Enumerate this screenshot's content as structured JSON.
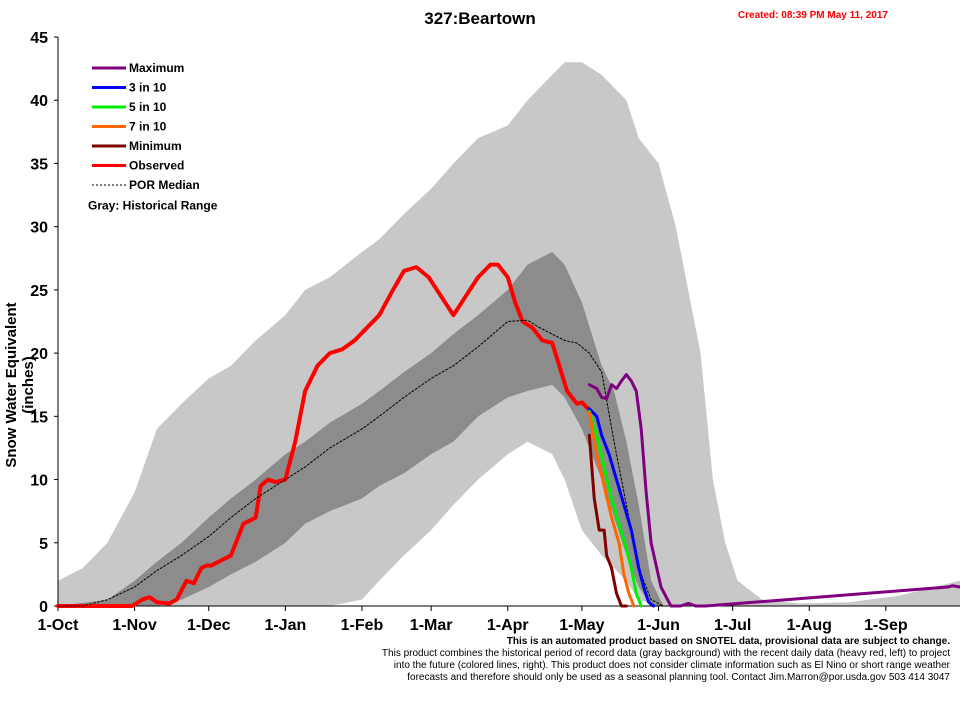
{
  "header": {
    "title": "327:Beartown",
    "created": "Created: 08:39 PM May 11, 2017"
  },
  "footer": {
    "lead": "This is an automated product based on SNOTEL data, provisional data are subject to change.",
    "lines": [
      "This product combines the historical period of record data (gray background) with the recent daily data (heavy red, left) to project",
      "into the future (colored lines, right). This product does not consider climate information such as El Nino or short range weather",
      "forecasts and therefore should only be used as a seasonal planning tool. Contact Jim.Marron@por.usda.gov 503 414 3047"
    ]
  },
  "chart_data": {
    "type": "line",
    "title": "327:Beartown",
    "ylabel": "Snow Water Equivalent (inches)",
    "xlabel": "",
    "ylim": [
      0,
      45
    ],
    "yticks": [
      0,
      5,
      10,
      15,
      20,
      25,
      30,
      35,
      40,
      45
    ],
    "x_unit": "day of water year (0 = 1-Oct)",
    "xlim": [
      0,
      365
    ],
    "xticks": [
      {
        "label": "1-Oct",
        "x": 0
      },
      {
        "label": "1-Nov",
        "x": 31
      },
      {
        "label": "1-Dec",
        "x": 61
      },
      {
        "label": "1-Jan",
        "x": 92
      },
      {
        "label": "1-Feb",
        "x": 123
      },
      {
        "label": "1-Mar",
        "x": 151
      },
      {
        "label": "1-Apr",
        "x": 182
      },
      {
        "label": "1-May",
        "x": 212
      },
      {
        "label": "1-Jun",
        "x": 243
      },
      {
        "label": "1-Jul",
        "x": 273
      },
      {
        "label": "1-Aug",
        "x": 304
      },
      {
        "label": "1-Sep",
        "x": 335
      }
    ],
    "grid": false,
    "legend_position": "top-left",
    "legend": [
      {
        "label": "Maximum",
        "color": "#800080",
        "style": "solid"
      },
      {
        "label": "3 in 10",
        "color": "#0000ff",
        "style": "solid"
      },
      {
        "label": "5 in 10",
        "color": "#00ee00",
        "style": "solid"
      },
      {
        "label": "7 in 10",
        "color": "#ff6600",
        "style": "solid"
      },
      {
        "label": "Minimum",
        "color": "#800000",
        "style": "solid"
      },
      {
        "label": "Observed",
        "color": "#ff0000",
        "style": "solid"
      },
      {
        "label": "POR Median",
        "color": "#000000",
        "style": "dashed"
      }
    ],
    "legend_note": "Gray: Historical Range",
    "historical_range": {
      "x": [
        0,
        10,
        20,
        31,
        40,
        50,
        61,
        70,
        80,
        92,
        100,
        110,
        123,
        130,
        140,
        151,
        160,
        170,
        182,
        190,
        200,
        205,
        212,
        220,
        230,
        235,
        243,
        250,
        255,
        260,
        265,
        270,
        275,
        285,
        300,
        320,
        340,
        365
      ],
      "max": [
        2,
        3,
        5,
        9,
        14,
        16,
        18,
        19,
        21,
        23,
        25,
        26,
        28,
        29,
        31,
        33,
        35,
        37,
        38,
        40,
        42,
        43,
        43,
        42,
        40,
        37,
        35,
        30,
        25,
        20,
        10,
        5,
        2,
        0.5,
        0.2,
        0.3,
        0.8,
        2
      ],
      "min": [
        0,
        0,
        0,
        0,
        0,
        0,
        0,
        0,
        0,
        0,
        0,
        0,
        0.5,
        2,
        4,
        6,
        8,
        10,
        12,
        13,
        12,
        10,
        6,
        4,
        2,
        0.5,
        0,
        0,
        0,
        0,
        0,
        0,
        0,
        0,
        0,
        0,
        0,
        0
      ]
    },
    "central_range": {
      "x": [
        0,
        20,
        31,
        40,
        50,
        61,
        70,
        80,
        92,
        100,
        110,
        123,
        130,
        140,
        151,
        160,
        170,
        182,
        190,
        200,
        205,
        212,
        220,
        225,
        230,
        235,
        240,
        245
      ],
      "upper": [
        0,
        0.5,
        2,
        3.5,
        5,
        7,
        8.5,
        10,
        12,
        13,
        14.5,
        16,
        17,
        18.5,
        20,
        21.5,
        23,
        25,
        27,
        28,
        27,
        24,
        19,
        17,
        13,
        8,
        2,
        0
      ],
      "lower": [
        0,
        0,
        0,
        0,
        0.5,
        1.5,
        2.5,
        3.5,
        5,
        6.5,
        7.5,
        8.5,
        9.5,
        10.5,
        12,
        13,
        15,
        16.5,
        17,
        17.5,
        16.5,
        14,
        10,
        7,
        4,
        1.5,
        0,
        0
      ]
    },
    "series": [
      {
        "name": "Observed",
        "color": "#ff0000",
        "width": 4,
        "x": [
          0,
          30,
          34,
          37,
          40,
          45,
          48,
          52,
          55,
          58,
          60,
          62,
          65,
          70,
          75,
          80,
          82,
          85,
          88,
          92,
          96,
          100,
          105,
          110,
          115,
          120,
          125,
          130,
          135,
          140,
          145,
          150,
          155,
          160,
          165,
          170,
          175,
          178,
          182,
          185,
          188,
          192,
          196,
          200,
          206,
          210,
          212,
          215
        ],
        "y": [
          0,
          0,
          0.5,
          0.7,
          0.3,
          0.2,
          0.5,
          2,
          1.8,
          3,
          3.2,
          3.2,
          3.5,
          4,
          6.5,
          7,
          9.5,
          10,
          9.8,
          10,
          13,
          17,
          19,
          20,
          20.3,
          21,
          22,
          23,
          24.8,
          26.5,
          26.8,
          26,
          24.5,
          23,
          24.5,
          26,
          27,
          27,
          26,
          24,
          22.5,
          22,
          21,
          20.8,
          17,
          16,
          16.1,
          15.5
        ]
      },
      {
        "name": "POR Median",
        "color": "#000000",
        "width": 1,
        "dashed": true,
        "x": [
          0,
          10,
          20,
          31,
          40,
          50,
          61,
          70,
          80,
          92,
          100,
          110,
          123,
          130,
          140,
          151,
          160,
          170,
          182,
          190,
          195,
          200,
          205,
          210,
          215,
          220,
          225,
          230,
          235,
          240,
          245,
          250
        ],
        "y": [
          0,
          0,
          0.5,
          1.5,
          2.8,
          4,
          5.5,
          7,
          8.5,
          10,
          11,
          12.5,
          14,
          15,
          16.5,
          18,
          19,
          20.5,
          22.5,
          22.6,
          22,
          21.5,
          21,
          20.8,
          20,
          18.5,
          13,
          8,
          3,
          0.5,
          0,
          0
        ]
      },
      {
        "name": "Maximum",
        "color": "#800080",
        "width": 3,
        "x": [
          215,
          218,
          220,
          222,
          224,
          226,
          228,
          230,
          232,
          234,
          236,
          238,
          240,
          244,
          248,
          252,
          255,
          258,
          262,
          360,
          362,
          365
        ],
        "y": [
          17.5,
          17.2,
          16.5,
          16.4,
          17.5,
          17.2,
          17.8,
          18.3,
          17.8,
          17,
          14,
          9,
          5,
          1.5,
          0,
          0,
          0.2,
          0,
          0,
          1.5,
          1.6,
          1.5
        ]
      },
      {
        "name": "3 in 10",
        "color": "#0000ff",
        "width": 3,
        "x": [
          215,
          218,
          220,
          223,
          226,
          229,
          232,
          235,
          237,
          239,
          241
        ],
        "y": [
          15.6,
          15,
          13.5,
          12,
          10,
          8,
          6,
          3,
          1.5,
          0.3,
          0
        ]
      },
      {
        "name": "5 in 10",
        "color": "#00ee00",
        "width": 3,
        "x": [
          215,
          218,
          221,
          224,
          227,
          230,
          232,
          234,
          236
        ],
        "y": [
          15.4,
          13.5,
          11,
          8.5,
          6.5,
          4.5,
          3,
          1,
          0
        ]
      },
      {
        "name": "7 in 10",
        "color": "#ff6600",
        "width": 3,
        "x": [
          215,
          218,
          221,
          224,
          227,
          229,
          231,
          233
        ],
        "y": [
          15.3,
          12,
          9.5,
          7,
          5,
          2.5,
          1,
          0
        ]
      },
      {
        "name": "Minimum",
        "color": "#800000",
        "width": 3,
        "x": [
          215,
          217,
          219,
          221,
          222,
          224,
          226,
          228,
          230
        ],
        "y": [
          13.5,
          8.5,
          6,
          6,
          4,
          3,
          1,
          0,
          0
        ]
      }
    ]
  }
}
